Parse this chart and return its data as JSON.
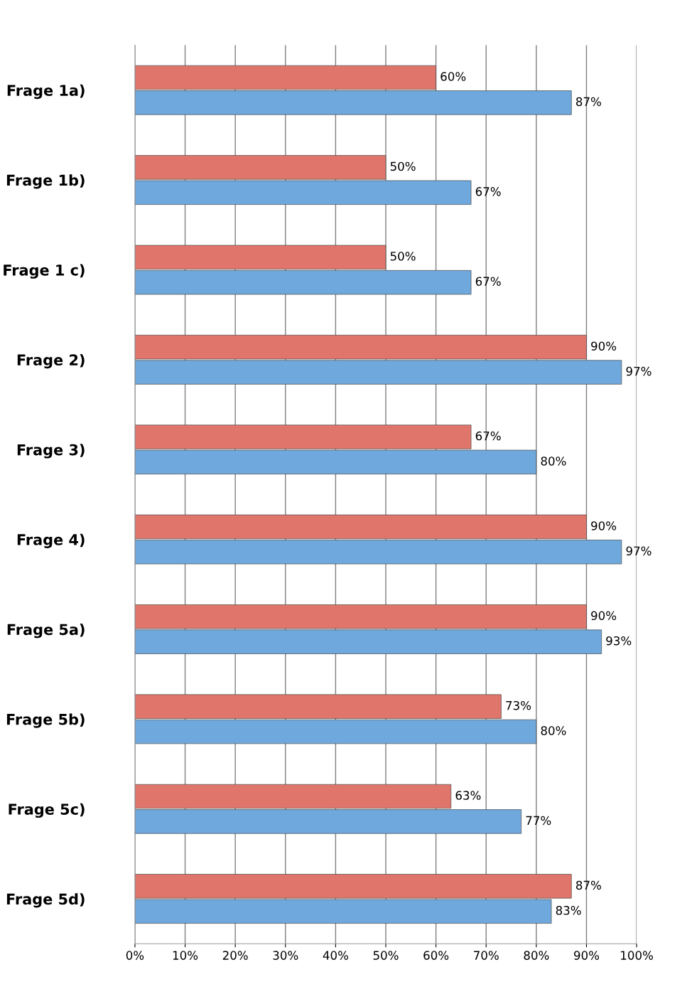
{
  "chart_data": {
    "type": "bar",
    "orientation": "horizontal",
    "categories": [
      "Frage 1a)",
      "Frage 1b)",
      "Frage 1 c)",
      "Frage 2)",
      "Frage 3)",
      "Frage 4)",
      "Frage 5a)",
      "Frage 5b)",
      "Frage 5c)",
      "Frage 5d)"
    ],
    "series": [
      {
        "color": "#e0766b",
        "values": [
          60,
          50,
          50,
          90,
          67,
          90,
          90,
          73,
          63,
          87
        ],
        "value_labels": [
          "60%",
          "50%",
          "50%",
          "90%",
          "67%",
          "90%",
          "90%",
          "73%",
          "63%",
          "87%"
        ]
      },
      {
        "color": "#6fa8dc",
        "values": [
          87,
          67,
          67,
          97,
          80,
          97,
          93,
          80,
          77,
          83
        ],
        "value_labels": [
          "87%",
          "67%",
          "67%",
          "97%",
          "80%",
          "97%",
          "93%",
          "80%",
          "77%",
          "83%"
        ]
      }
    ],
    "xlim": [
      0,
      100
    ],
    "xticks": [
      {
        "value": 0,
        "label": "0%"
      },
      {
        "value": 10,
        "label": "10%"
      },
      {
        "value": 20,
        "label": "20%"
      },
      {
        "value": 30,
        "label": "30%"
      },
      {
        "value": 40,
        "label": "40%"
      },
      {
        "value": 50,
        "label": "50%"
      },
      {
        "value": 60,
        "label": "60%"
      },
      {
        "value": 70,
        "label": "70%"
      },
      {
        "value": 80,
        "label": "80%"
      },
      {
        "value": 90,
        "label": "90%"
      },
      {
        "value": 100,
        "label": "100%"
      }
    ],
    "grid": "x"
  }
}
